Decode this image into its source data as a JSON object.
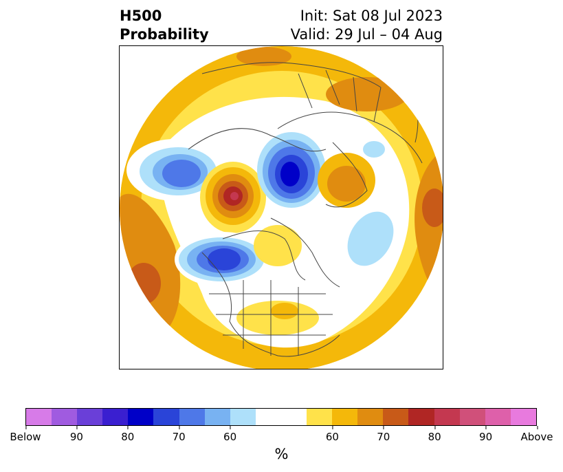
{
  "title": {
    "left_line1": "H500",
    "left_line2": "Probability",
    "right_line1": "Init: Sat 08 Jul 2023",
    "right_line2": "Valid: 29 Jul – 04 Aug"
  },
  "colorbar": {
    "units_label": "%",
    "tick_labels": [
      "Below",
      "90",
      "80",
      "70",
      "60",
      "60",
      "70",
      "80",
      "90",
      "Above"
    ],
    "colors": [
      "#d77be8",
      "#a05be0",
      "#6a3fd8",
      "#3a1fd0",
      "#0000c8",
      "#2a44d8",
      "#4e78e8",
      "#78b2f2",
      "#aee0fa",
      "#ffffff",
      "#ffe24a",
      "#f4b80a",
      "#e08c10",
      "#c85a18",
      "#b02624",
      "#c43850",
      "#d0507a",
      "#de60aa",
      "#e87ade"
    ]
  },
  "map": {
    "projection": "polar-stereographic-north",
    "colors": {
      "above_light": "#ffe24a",
      "above_mid": "#f4b80a",
      "above_orange": "#e08c10",
      "above_dark": "#c85a18",
      "above_red": "#b02624",
      "above_pink": "#c43850",
      "below_light": "#aee0fa",
      "below_mid": "#78b2f2",
      "below_blue": "#4e78e8",
      "below_deep": "#2a44d8",
      "below_navy": "#0000c8",
      "coast": "#444444"
    }
  }
}
